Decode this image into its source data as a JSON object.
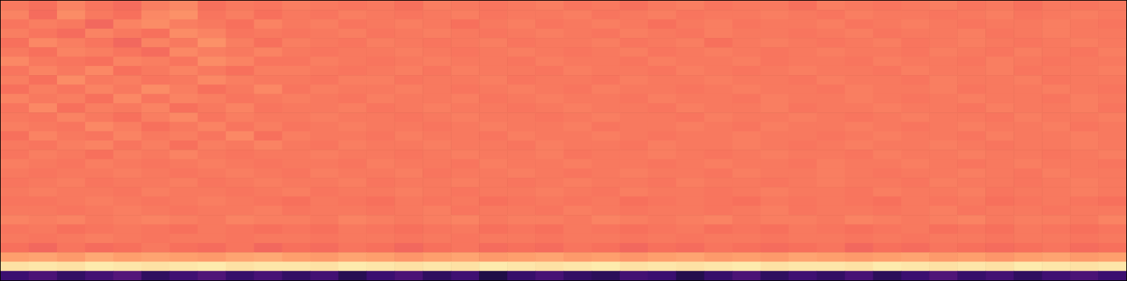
{
  "chart_data": {
    "type": "heatmap",
    "color": "magma",
    "tick_labels": false,
    "zlim": [
      0,
      100
    ],
    "cells": [
      [
        72,
        70,
        74,
        71,
        69,
        73,
        75,
        70,
        72,
        71,
        73,
        72,
        71,
        72,
        70,
        73,
        72,
        71,
        72,
        73,
        71,
        72,
        70,
        72,
        73,
        71,
        72,
        72,
        70,
        73,
        72,
        71,
        72,
        73,
        71,
        72,
        70,
        72,
        71,
        72
      ],
      [
        74,
        69,
        76,
        72,
        70,
        75,
        77,
        71,
        73,
        70,
        72,
        71,
        73,
        72,
        71,
        72,
        73,
        71,
        72,
        72,
        73,
        71,
        72,
        73,
        71,
        72,
        72,
        73,
        72,
        71,
        73,
        72,
        72,
        71,
        72,
        73,
        71,
        72,
        73,
        72
      ],
      [
        71,
        73,
        72,
        68,
        74,
        76,
        73,
        72,
        70,
        74,
        72,
        73,
        71,
        72,
        73,
        72,
        70,
        72,
        73,
        71,
        72,
        73,
        72,
        70,
        72,
        73,
        71,
        72,
        72,
        73,
        71,
        72,
        73,
        72,
        71,
        72,
        72,
        73,
        72,
        71
      ],
      [
        73,
        71,
        69,
        74,
        72,
        70,
        76,
        74,
        71,
        72,
        71,
        72,
        73,
        71,
        72,
        73,
        72,
        71,
        72,
        73,
        72,
        71,
        73,
        72,
        71,
        73,
        72,
        72,
        71,
        72,
        73,
        71,
        72,
        72,
        73,
        71,
        72,
        73,
        72,
        72
      ],
      [
        70,
        75,
        73,
        71,
        68,
        74,
        72,
        77,
        73,
        70,
        73,
        72,
        71,
        73,
        72,
        71,
        72,
        73,
        71,
        72,
        72,
        73,
        71,
        72,
        73,
        70,
        72,
        73,
        72,
        71,
        72,
        73,
        71,
        72,
        73,
        72,
        71,
        72,
        73,
        72
      ],
      [
        72,
        70,
        74,
        73,
        71,
        69,
        75,
        73,
        72,
        74,
        72,
        71,
        72,
        72,
        73,
        72,
        71,
        72,
        73,
        72,
        71,
        72,
        73,
        71,
        72,
        73,
        72,
        71,
        72,
        73,
        72,
        72,
        71,
        73,
        72,
        71,
        73,
        72,
        71,
        73
      ],
      [
        75,
        72,
        71,
        70,
        74,
        73,
        71,
        76,
        74,
        71,
        71,
        73,
        72,
        71,
        72,
        73,
        72,
        72,
        71,
        73,
        72,
        72,
        71,
        73,
        72,
        72,
        73,
        71,
        72,
        72,
        71,
        73,
        72,
        72,
        71,
        73,
        72,
        71,
        72,
        72
      ],
      [
        71,
        74,
        72,
        75,
        70,
        72,
        74,
        72,
        70,
        73,
        73,
        72,
        71,
        72,
        73,
        71,
        73,
        72,
        72,
        71,
        73,
        72,
        72,
        71,
        73,
        72,
        71,
        72,
        73,
        72,
        72,
        71,
        73,
        72,
        72,
        73,
        71,
        72,
        72,
        73
      ],
      [
        73,
        70,
        76,
        72,
        73,
        71,
        72,
        75,
        73,
        72,
        72,
        71,
        73,
        73,
        71,
        72,
        72,
        73,
        71,
        72,
        72,
        71,
        73,
        72,
        72,
        73,
        72,
        72,
        71,
        73,
        72,
        72,
        71,
        73,
        72,
        72,
        73,
        71,
        72,
        72
      ],
      [
        70,
        73,
        71,
        74,
        72,
        76,
        73,
        70,
        72,
        75,
        71,
        73,
        72,
        72,
        73,
        72,
        71,
        72,
        73,
        72,
        71,
        73,
        72,
        72,
        71,
        72,
        73,
        72,
        72,
        71,
        73,
        72,
        72,
        73,
        71,
        72,
        72,
        73,
        72,
        71
      ],
      [
        74,
        72,
        73,
        70,
        75,
        71,
        74,
        73,
        71,
        72,
        73,
        72,
        71,
        73,
        72,
        72,
        73,
        71,
        72,
        73,
        72,
        72,
        71,
        73,
        72,
        72,
        71,
        73,
        72,
        72,
        73,
        72,
        71,
        72,
        73,
        72,
        72,
        71,
        73,
        72
      ],
      [
        71,
        75,
        70,
        73,
        72,
        74,
        70,
        72,
        74,
        71,
        72,
        72,
        73,
        71,
        72,
        73,
        72,
        72,
        71,
        72,
        73,
        72,
        72,
        71,
        73,
        72,
        72,
        73,
        71,
        72,
        72,
        73,
        72,
        72,
        71,
        73,
        72,
        72,
        73,
        71
      ],
      [
        72,
        71,
        74,
        72,
        70,
        73,
        75,
        71,
        73,
        72,
        72,
        73,
        72,
        72,
        71,
        72,
        73,
        72,
        72,
        71,
        72,
        73,
        72,
        72,
        71,
        73,
        72,
        72,
        73,
        72,
        71,
        72,
        73,
        72,
        72,
        71,
        73,
        72,
        72,
        73
      ],
      [
        73,
        72,
        71,
        75,
        73,
        70,
        72,
        74,
        71,
        73,
        71,
        72,
        73,
        72,
        72,
        71,
        72,
        73,
        72,
        72,
        73,
        71,
        72,
        72,
        73,
        72,
        71,
        73,
        72,
        72,
        73,
        72,
        71,
        72,
        73,
        72,
        72,
        73,
        71,
        72
      ],
      [
        70,
        74,
        72,
        71,
        74,
        72,
        73,
        71,
        75,
        70,
        73,
        72,
        72,
        71,
        73,
        72,
        72,
        71,
        73,
        72,
        72,
        73,
        72,
        71,
        72,
        72,
        73,
        72,
        72,
        71,
        72,
        73,
        72,
        72,
        71,
        73,
        72,
        72,
        73,
        72
      ],
      [
        72,
        71,
        73,
        74,
        71,
        73,
        70,
        73,
        72,
        74,
        72,
        71,
        73,
        72,
        72,
        73,
        72,
        72,
        71,
        73,
        72,
        72,
        71,
        73,
        72,
        72,
        73,
        72,
        71,
        72,
        73,
        72,
        72,
        73,
        72,
        71,
        72,
        72,
        73,
        72
      ],
      [
        71,
        73,
        72,
        70,
        73,
        72,
        74,
        72,
        71,
        72,
        72,
        73,
        72,
        72,
        71,
        72,
        73,
        72,
        72,
        73,
        71,
        72,
        72,
        73,
        72,
        71,
        72,
        73,
        72,
        72,
        71,
        73,
        72,
        72,
        73,
        72,
        72,
        71,
        72,
        73
      ],
      [
        73,
        72,
        71,
        73,
        72,
        71,
        72,
        73,
        72,
        71,
        72,
        72,
        71,
        73,
        72,
        72,
        71,
        73,
        72,
        72,
        73,
        72,
        72,
        71,
        72,
        73,
        72,
        72,
        71,
        73,
        72,
        72,
        73,
        72,
        71,
        72,
        73,
        72,
        72,
        71
      ],
      [
        72,
        71,
        72,
        72,
        73,
        72,
        71,
        72,
        73,
        72,
        71,
        73,
        72,
        72,
        73,
        71,
        72,
        72,
        73,
        72,
        71,
        72,
        73,
        72,
        72,
        71,
        73,
        72,
        72,
        73,
        72,
        71,
        72,
        72,
        73,
        72,
        71,
        73,
        72,
        72
      ],
      [
        71,
        72,
        73,
        71,
        72,
        72,
        73,
        71,
        72,
        73,
        72,
        72,
        73,
        71,
        72,
        72,
        73,
        72,
        71,
        72,
        73,
        72,
        72,
        71,
        73,
        72,
        72,
        71,
        72,
        73,
        72,
        72,
        71,
        73,
        72,
        72,
        71,
        72,
        73,
        72
      ],
      [
        72,
        73,
        72,
        72,
        71,
        73,
        72,
        72,
        71,
        72,
        73,
        71,
        72,
        72,
        73,
        72,
        71,
        72,
        72,
        73,
        72,
        71,
        73,
        72,
        72,
        71,
        72,
        73,
        72,
        72,
        71,
        73,
        72,
        72,
        73,
        71,
        72,
        72,
        73,
        72
      ],
      [
        71,
        71,
        72,
        73,
        72,
        71,
        72,
        73,
        72,
        71,
        70,
        72,
        71,
        70,
        72,
        71,
        72,
        70,
        71,
        72,
        71,
        72,
        70,
        71,
        72,
        71,
        70,
        72,
        71,
        72,
        71,
        70,
        72,
        71,
        72,
        70,
        71,
        72,
        71,
        70
      ],
      [
        72,
        72,
        71,
        72,
        73,
        72,
        71,
        72,
        72,
        73,
        71,
        72,
        72,
        71,
        72,
        73,
        71,
        72,
        72,
        71,
        73,
        72,
        71,
        72,
        72,
        71,
        72,
        73,
        71,
        72,
        72,
        71,
        72,
        73,
        71,
        72,
        72,
        71,
        72,
        72
      ],
      [
        74,
        73,
        74,
        72,
        73,
        74,
        73,
        72,
        74,
        73,
        73,
        72,
        74,
        73,
        72,
        73,
        74,
        72,
        73,
        73,
        72,
        74,
        73,
        72,
        73,
        74,
        72,
        73,
        73,
        72,
        74,
        73,
        72,
        73,
        74,
        72,
        73,
        73,
        72,
        74
      ],
      [
        71,
        72,
        70,
        71,
        72,
        71,
        70,
        72,
        71,
        70,
        71,
        70,
        72,
        71,
        70,
        71,
        72,
        70,
        71,
        70,
        72,
        71,
        70,
        71,
        72,
        70,
        71,
        70,
        72,
        71,
        70,
        71,
        72,
        70,
        71,
        70,
        72,
        71,
        70,
        71
      ],
      [
        72,
        71,
        72,
        73,
        72,
        71,
        72,
        72,
        71,
        72,
        72,
        71,
        72,
        72,
        71,
        72,
        71,
        72,
        72,
        71,
        72,
        72,
        71,
        72,
        71,
        72,
        72,
        71,
        72,
        72,
        71,
        72,
        71,
        72,
        72,
        71,
        72,
        72,
        71,
        72
      ],
      [
        70,
        68,
        71,
        69,
        70,
        72,
        70,
        69,
        71,
        68,
        70,
        69,
        71,
        70,
        68,
        70,
        71,
        69,
        70,
        69,
        71,
        70,
        68,
        70,
        69,
        71,
        70,
        69,
        70,
        71,
        68,
        70,
        69,
        71,
        70,
        69,
        70,
        71,
        69,
        70
      ],
      [
        80,
        81,
        79,
        82,
        80,
        81,
        80,
        79,
        81,
        82,
        80,
        79,
        81,
        80,
        78,
        80,
        81,
        79,
        80,
        81,
        79,
        80,
        78,
        80,
        81,
        79,
        80,
        79,
        81,
        80,
        79,
        80,
        81,
        79,
        80,
        78,
        80,
        81,
        79,
        80
      ],
      [
        94,
        95,
        94,
        96,
        95,
        94,
        95,
        96,
        94,
        95,
        95,
        94,
        96,
        95,
        94,
        95,
        94,
        96,
        95,
        94,
        95,
        96,
        94,
        95,
        94,
        95,
        96,
        94,
        95,
        95,
        94,
        96,
        95,
        94,
        95,
        94,
        96,
        95,
        94,
        95
      ],
      [
        20,
        24,
        18,
        22,
        26,
        17,
        21,
        25,
        19,
        23,
        18,
        22,
        15,
        20,
        24,
        17,
        21,
        13,
        19,
        23,
        18,
        16,
        22,
        20,
        14,
        19,
        24,
        17,
        21,
        18,
        23,
        16,
        20,
        25,
        19,
        22,
        17,
        21,
        24,
        20
      ]
    ]
  }
}
